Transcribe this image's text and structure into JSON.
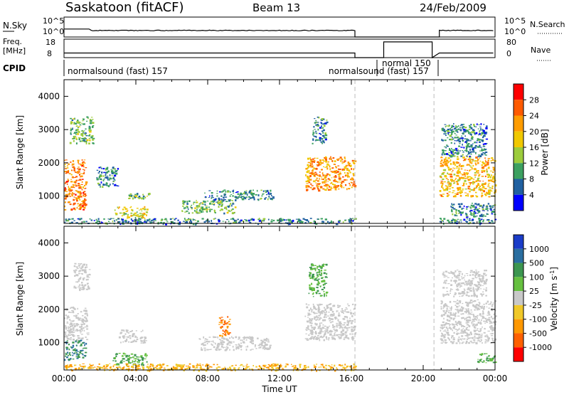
{
  "header": {
    "station": "Saskatoon (fitACF)",
    "beam": "Beam 13",
    "date": "24/Feb/2009"
  },
  "nsky": {
    "label": "N.Sky",
    "ticks": [
      "10^5",
      "10^0"
    ],
    "right_ticks": [
      "10^5",
      "10^0"
    ],
    "right_label": "N.Search"
  },
  "freq": {
    "label_line1": "Freq.",
    "label_line2": "[MHz]",
    "ticks": [
      "18",
      "8"
    ],
    "right_ticks": [
      "80",
      "0"
    ],
    "right_label": "Nave"
  },
  "cpid": {
    "label": "CPID",
    "segments": [
      {
        "text": "normalsound (fast) 157",
        "start_h": 0.0,
        "end_h": 16.2
      },
      {
        "text": "normalsound (fast) 157",
        "start_h": 16.2,
        "end_h": 17.2
      },
      {
        "text": "normal 150",
        "start_h": 17.2,
        "end_h": 21.1
      }
    ]
  },
  "power_colorbar": {
    "label": "Power [dB]",
    "ticks": [
      "28",
      "24",
      "20",
      "16",
      "12",
      "8",
      "4"
    ],
    "colors": [
      "#ff0000",
      "#ff5a00",
      "#ff9c00",
      "#f0c800",
      "#9ccc3c",
      "#3ca060",
      "#2060a0",
      "#0000ff"
    ]
  },
  "velocity_colorbar": {
    "label_main": "Velocity [m s",
    "label_sup": "-1",
    "label_end": "]",
    "ticks": [
      "1000",
      "500",
      "100",
      "25",
      "-25",
      "-100",
      "-500",
      "-1000"
    ],
    "colors": [
      "#1a3cc8",
      "#2a6ea0",
      "#3c9650",
      "#66c040",
      "#c8c8c8",
      "#f0c828",
      "#ff9800",
      "#ff6000",
      "#ff0000"
    ]
  },
  "chart_data": [
    {
      "type": "heatmap",
      "name": "Power",
      "ylabel": "Slant Range [km]",
      "ylim": [
        180,
        4500
      ],
      "yticks": [
        1000,
        2000,
        3000,
        4000
      ],
      "xlim": [
        0,
        24
      ],
      "xticks": [
        "00:00",
        "04:00",
        "08:00",
        "12:00",
        "16:00",
        "20:00",
        "00:00"
      ],
      "gaps_h": [
        16.2,
        20.6
      ],
      "blobs": [
        {
          "t0": 0.0,
          "t1": 1.2,
          "r0": 600,
          "r1": 2100,
          "value": 24
        },
        {
          "t0": 0.3,
          "t1": 1.6,
          "r0": 2600,
          "r1": 3400,
          "value": 12
        },
        {
          "t0": 1.8,
          "t1": 3.0,
          "r0": 1300,
          "r1": 1900,
          "value": 8
        },
        {
          "t0": 2.8,
          "t1": 4.6,
          "r0": 350,
          "r1": 700,
          "value": 16
        },
        {
          "t0": 3.5,
          "t1": 4.8,
          "r0": 900,
          "r1": 1100,
          "value": 12
        },
        {
          "t0": 6.5,
          "t1": 9.5,
          "r0": 500,
          "r1": 900,
          "value": 12
        },
        {
          "t0": 7.8,
          "t1": 11.6,
          "r0": 900,
          "r1": 1200,
          "value": 8
        },
        {
          "t0": 13.4,
          "t1": 16.2,
          "r0": 1200,
          "r1": 2200,
          "value": 22
        },
        {
          "t0": 13.8,
          "t1": 14.6,
          "r0": 2600,
          "r1": 3400,
          "value": 8
        },
        {
          "t0": 20.9,
          "t1": 24.0,
          "r0": 1000,
          "r1": 2200,
          "value": 20
        },
        {
          "t0": 21.0,
          "t1": 23.5,
          "r0": 2200,
          "r1": 3200,
          "value": 8
        },
        {
          "t0": 21.5,
          "t1": 24.0,
          "r0": 400,
          "r1": 800,
          "value": 8
        },
        {
          "t0": 0.0,
          "t1": 16.2,
          "r0": 180,
          "r1": 350,
          "value": 8
        },
        {
          "t0": 20.9,
          "t1": 24.0,
          "r0": 180,
          "r1": 350,
          "value": 8
        }
      ]
    },
    {
      "type": "heatmap",
      "name": "Velocity",
      "ylabel": "Slant Range [km]",
      "xlabel": "Time UT",
      "ylim": [
        180,
        4500
      ],
      "yticks": [
        1000,
        2000,
        3000,
        4000
      ],
      "xlim": [
        0,
        24
      ],
      "xticks": [
        "00:00",
        "04:00",
        "08:00",
        "12:00",
        "16:00",
        "20:00",
        "00:00"
      ],
      "gaps_h": [
        16.2,
        20.6
      ],
      "blobs": [
        {
          "t0": 0.0,
          "t1": 1.2,
          "r0": 500,
          "r1": 1100,
          "value": 500
        },
        {
          "t0": 0.0,
          "t1": 1.3,
          "r0": 1100,
          "r1": 2100,
          "value": 0
        },
        {
          "t0": 0.5,
          "t1": 1.4,
          "r0": 2600,
          "r1": 3400,
          "value": 0
        },
        {
          "t0": 2.7,
          "t1": 4.6,
          "r0": 350,
          "r1": 700,
          "value": 100
        },
        {
          "t0": 3.0,
          "t1": 4.5,
          "r0": 1000,
          "r1": 1400,
          "value": 0
        },
        {
          "t0": 7.5,
          "t1": 11.5,
          "r0": 800,
          "r1": 1200,
          "value": 0
        },
        {
          "t0": 8.6,
          "t1": 9.2,
          "r0": 1200,
          "r1": 1800,
          "value": -500
        },
        {
          "t0": 0.0,
          "t1": 16.2,
          "r0": 180,
          "r1": 380,
          "value": -100
        },
        {
          "t0": 13.4,
          "t1": 16.2,
          "r0": 1100,
          "r1": 2200,
          "value": 0
        },
        {
          "t0": 13.6,
          "t1": 14.6,
          "r0": 2400,
          "r1": 3400,
          "value": 100
        },
        {
          "t0": 20.9,
          "t1": 24.0,
          "r0": 1000,
          "r1": 2300,
          "value": 0
        },
        {
          "t0": 21.0,
          "t1": 23.5,
          "r0": 2400,
          "r1": 3200,
          "value": 0
        },
        {
          "t0": 23.0,
          "t1": 24.0,
          "r0": 400,
          "r1": 700,
          "value": 100
        }
      ]
    }
  ]
}
